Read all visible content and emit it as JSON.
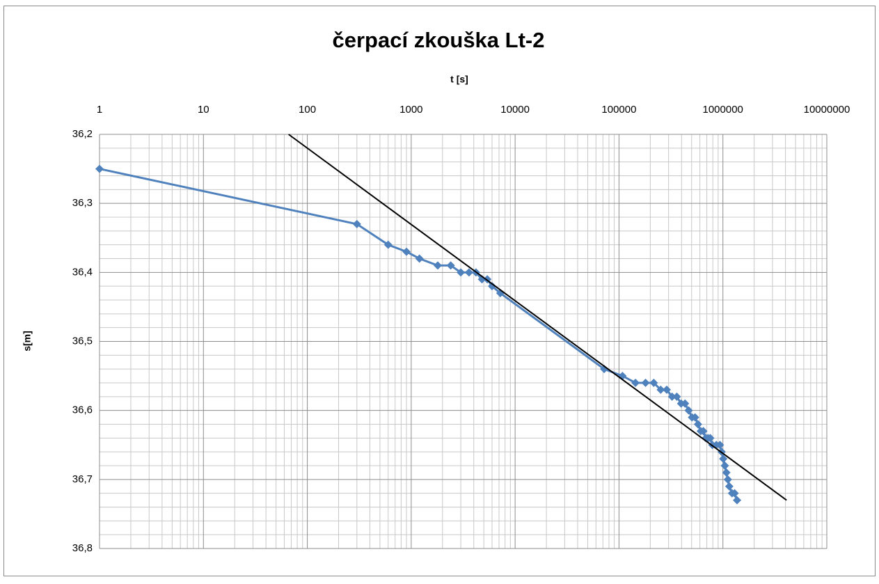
{
  "chart_data": {
    "type": "line",
    "title": "čerpací zkouška Lt-2",
    "x_label": "t [s]",
    "y_label": "s[m]",
    "x_log": true,
    "y_reversed": true,
    "x_axis_position": "top",
    "grid": true,
    "minor_grid": true,
    "xlim": [
      1,
      10000000
    ],
    "xticks": [
      1,
      10,
      100,
      1000,
      10000,
      100000,
      1000000,
      10000000
    ],
    "ylim": [
      36.2,
      36.8
    ],
    "yticks": [
      {
        "value": 36.2,
        "label": "36,2"
      },
      {
        "value": 36.3,
        "label": "36,3"
      },
      {
        "value": 36.4,
        "label": "36,4"
      },
      {
        "value": 36.5,
        "label": "36,5"
      },
      {
        "value": 36.6,
        "label": "36,6"
      },
      {
        "value": 36.7,
        "label": "36,7"
      },
      {
        "value": 36.8,
        "label": "36,8"
      }
    ],
    "series": [
      {
        "color": "#4f81bd",
        "marker": "diamond",
        "x": [
          1,
          300,
          600,
          900,
          1200,
          1800,
          2400,
          3000,
          3600,
          4200,
          4800,
          5400,
          6000,
          7200,
          72000,
          108000,
          144000,
          180000,
          216000,
          252000,
          288000,
          324000,
          360000,
          396000,
          432000,
          468000,
          504000,
          540000,
          576000,
          612000,
          648000,
          684000,
          720000,
          756000,
          792000,
          864000,
          936000,
          972000,
          1008000,
          1044000,
          1080000,
          1116000,
          1152000,
          1224000,
          1296000,
          1368000
        ],
        "values": [
          36.25,
          36.33,
          36.36,
          36.37,
          36.38,
          36.39,
          36.39,
          36.4,
          36.4,
          36.4,
          36.41,
          36.41,
          36.42,
          36.43,
          36.54,
          36.55,
          36.56,
          36.56,
          36.56,
          36.57,
          36.57,
          36.58,
          36.58,
          36.59,
          36.59,
          36.6,
          36.61,
          36.61,
          36.62,
          36.63,
          36.63,
          36.64,
          36.64,
          36.64,
          36.65,
          36.65,
          36.65,
          36.66,
          36.67,
          36.68,
          36.69,
          36.7,
          36.71,
          36.72,
          36.72,
          36.73
        ]
      },
      {
        "color": "#000000",
        "marker": "none",
        "x": [
          66,
          4100000
        ],
        "values": [
          36.2,
          36.73
        ]
      }
    ]
  }
}
